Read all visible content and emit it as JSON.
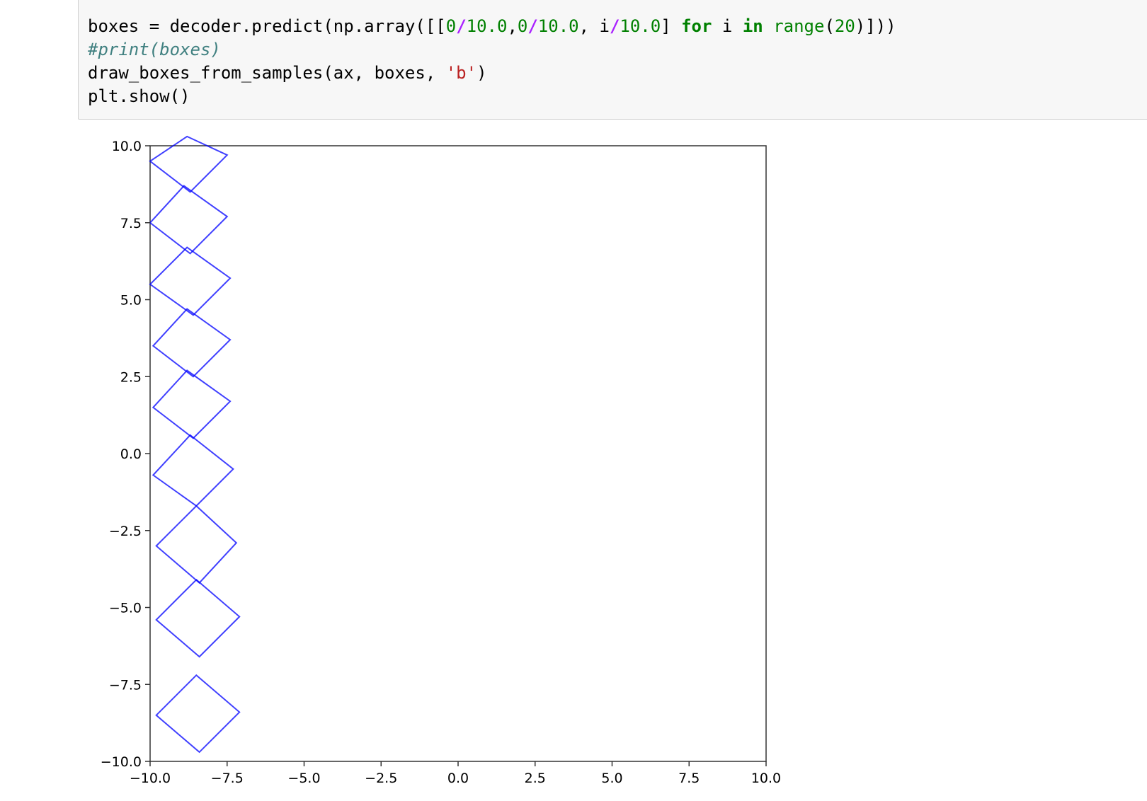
{
  "code_cell": {
    "lines": [
      [
        {
          "t": "boxes ",
          "c": "plain"
        },
        {
          "t": "=",
          "c": "plain"
        },
        {
          "t": " decoder.predict(np.array([[",
          "c": "plain"
        },
        {
          "t": "0",
          "c": "num"
        },
        {
          "t": "/",
          "c": "op"
        },
        {
          "t": "10.0",
          "c": "num"
        },
        {
          "t": ",",
          "c": "plain"
        },
        {
          "t": "0",
          "c": "num"
        },
        {
          "t": "/",
          "c": "op"
        },
        {
          "t": "10.0",
          "c": "num"
        },
        {
          "t": ", i",
          "c": "plain"
        },
        {
          "t": "/",
          "c": "op"
        },
        {
          "t": "10.0",
          "c": "num"
        },
        {
          "t": "] ",
          "c": "plain"
        },
        {
          "t": "for",
          "c": "kw"
        },
        {
          "t": " i ",
          "c": "plain"
        },
        {
          "t": "in",
          "c": "kw"
        },
        {
          "t": " ",
          "c": "plain"
        },
        {
          "t": "range",
          "c": "builtin"
        },
        {
          "t": "(",
          "c": "plain"
        },
        {
          "t": "20",
          "c": "num"
        },
        {
          "t": ")]))",
          "c": "plain"
        }
      ],
      [
        {
          "t": "#print(boxes)",
          "c": "comment"
        }
      ],
      [
        {
          "t": "draw_boxes_from_samples(ax, boxes, ",
          "c": "plain"
        },
        {
          "t": "'b'",
          "c": "str"
        },
        {
          "t": ")",
          "c": "plain"
        }
      ],
      [
        {
          "t": "plt.show()",
          "c": "plain"
        }
      ]
    ]
  },
  "chart_data": {
    "type": "scatter",
    "title": "",
    "xlabel": "",
    "ylabel": "",
    "xlim": [
      -10.0,
      10.0
    ],
    "ylim": [
      -10.0,
      10.0
    ],
    "grid": false,
    "legend": "none",
    "color": "#0000ff",
    "xticks": [
      "−10.0",
      "−7.5",
      "−5.0",
      "−2.5",
      "0.0",
      "2.5",
      "5.0",
      "7.5",
      "10.0"
    ],
    "yticks": [
      "10.0",
      "7.5",
      "5.0",
      "2.5",
      "0.0",
      "−2.5",
      "−5.0",
      "−7.5",
      "−10.0"
    ],
    "xtick_values": [
      -10.0,
      -7.5,
      -5.0,
      -2.5,
      0.0,
      2.5,
      5.0,
      7.5,
      10.0
    ],
    "ytick_values": [
      10.0,
      7.5,
      5.0,
      2.5,
      0.0,
      -2.5,
      -5.0,
      -7.5,
      -10.0
    ],
    "boxes": [
      {
        "corners": [
          [
            -8.8,
            10.3
          ],
          [
            -7.5,
            9.7
          ],
          [
            -8.7,
            8.5
          ],
          [
            -10.0,
            9.5
          ]
        ]
      },
      {
        "corners": [
          [
            -8.9,
            8.7
          ],
          [
            -7.5,
            7.7
          ],
          [
            -8.7,
            6.5
          ],
          [
            -10.0,
            7.5
          ]
        ]
      },
      {
        "corners": [
          [
            -8.8,
            6.7
          ],
          [
            -7.4,
            5.7
          ],
          [
            -8.6,
            4.5
          ],
          [
            -10.0,
            5.5
          ]
        ]
      },
      {
        "corners": [
          [
            -8.8,
            4.7
          ],
          [
            -7.4,
            3.7
          ],
          [
            -8.6,
            2.5
          ],
          [
            -9.9,
            3.5
          ]
        ]
      },
      {
        "corners": [
          [
            -8.8,
            2.7
          ],
          [
            -7.4,
            1.7
          ],
          [
            -8.6,
            0.5
          ],
          [
            -9.9,
            1.5
          ]
        ]
      },
      {
        "corners": [
          [
            -8.7,
            0.6
          ],
          [
            -7.3,
            -0.5
          ],
          [
            -8.5,
            -1.7
          ],
          [
            -9.9,
            -0.7
          ]
        ]
      },
      {
        "corners": [
          [
            -8.5,
            -1.7
          ],
          [
            -7.2,
            -2.9
          ],
          [
            -8.4,
            -4.2
          ],
          [
            -9.8,
            -3.0
          ]
        ]
      },
      {
        "corners": [
          [
            -8.5,
            -4.1
          ],
          [
            -7.1,
            -5.3
          ],
          [
            -8.4,
            -6.6
          ],
          [
            -9.8,
            -5.4
          ]
        ]
      },
      {
        "corners": [
          [
            -8.5,
            -7.2
          ],
          [
            -7.1,
            -8.4
          ],
          [
            -8.4,
            -9.7
          ],
          [
            -9.8,
            -8.5
          ]
        ]
      }
    ]
  }
}
